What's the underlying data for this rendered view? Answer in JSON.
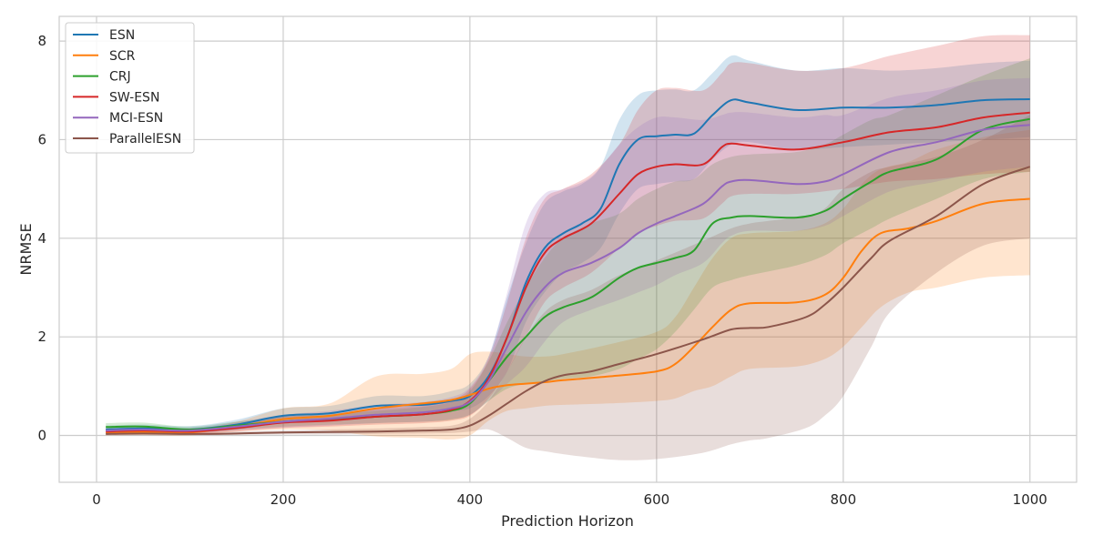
{
  "chart_data": {
    "type": "line",
    "title": "",
    "xlabel": "Prediction Horizon",
    "ylabel": "NRMSE",
    "xlim": [
      -40,
      1050
    ],
    "ylim": [
      -0.95,
      8.5
    ],
    "xticks": [
      0,
      200,
      400,
      600,
      800,
      1000
    ],
    "yticks": [
      0,
      2,
      4,
      6,
      8
    ],
    "xtick_labels": [
      "0",
      "200",
      "400",
      "600",
      "800",
      "1000"
    ],
    "ytick_labels": [
      "0",
      "2",
      "4",
      "6",
      "8"
    ],
    "grid": true,
    "legend_position": "top-left",
    "series": [
      {
        "name": "ESN",
        "color": "#1f77b4",
        "x": [
          10,
          50,
          100,
          150,
          200,
          250,
          300,
          350,
          380,
          400,
          420,
          440,
          460,
          480,
          500,
          520,
          540,
          560,
          580,
          600,
          620,
          640,
          660,
          680,
          700,
          750,
          800,
          850,
          900,
          950,
          1000
        ],
        "mean": [
          0.12,
          0.14,
          0.12,
          0.22,
          0.4,
          0.45,
          0.6,
          0.62,
          0.7,
          0.8,
          1.2,
          2.0,
          3.1,
          3.8,
          4.1,
          4.3,
          4.6,
          5.5,
          6.0,
          6.07,
          6.1,
          6.12,
          6.5,
          6.8,
          6.75,
          6.6,
          6.65,
          6.65,
          6.7,
          6.8,
          6.82
        ],
        "lower": [
          0.05,
          0.06,
          0.05,
          0.12,
          0.25,
          0.3,
          0.4,
          0.45,
          0.5,
          0.55,
          0.8,
          1.3,
          2.3,
          2.9,
          3.3,
          3.5,
          3.8,
          4.5,
          5.0,
          5.1,
          5.15,
          5.2,
          5.6,
          5.9,
          5.95,
          5.8,
          5.85,
          5.9,
          5.95,
          6.0,
          6.05
        ],
        "upper": [
          0.2,
          0.22,
          0.19,
          0.32,
          0.55,
          0.6,
          0.8,
          0.8,
          0.9,
          1.05,
          1.6,
          2.8,
          3.9,
          4.7,
          4.95,
          5.1,
          5.45,
          6.4,
          6.9,
          7.0,
          7.02,
          7.0,
          7.35,
          7.7,
          7.6,
          7.4,
          7.45,
          7.4,
          7.45,
          7.55,
          7.6
        ]
      },
      {
        "name": "SCR",
        "color": "#ff7f0e",
        "x": [
          10,
          50,
          100,
          150,
          200,
          250,
          300,
          350,
          380,
          400,
          420,
          440,
          460,
          480,
          500,
          550,
          600,
          620,
          640,
          660,
          680,
          700,
          750,
          780,
          800,
          820,
          840,
          870,
          900,
          950,
          1000
        ],
        "mean": [
          0.05,
          0.07,
          0.06,
          0.18,
          0.33,
          0.4,
          0.55,
          0.65,
          0.72,
          0.82,
          0.95,
          1.02,
          1.05,
          1.08,
          1.12,
          1.2,
          1.3,
          1.45,
          1.8,
          2.2,
          2.55,
          2.68,
          2.7,
          2.85,
          3.2,
          3.75,
          4.1,
          4.2,
          4.35,
          4.7,
          4.8
        ],
        "lower": [
          0.0,
          0.01,
          0.0,
          0.08,
          0.12,
          0.1,
          -0.02,
          -0.05,
          -0.08,
          0.0,
          0.3,
          0.5,
          0.55,
          0.6,
          0.62,
          0.65,
          0.7,
          0.75,
          0.9,
          1.0,
          1.2,
          1.35,
          1.4,
          1.55,
          1.8,
          2.2,
          2.6,
          2.9,
          3.0,
          3.2,
          3.25
        ],
        "upper": [
          0.12,
          0.14,
          0.12,
          0.28,
          0.55,
          0.65,
          1.2,
          1.25,
          1.35,
          1.65,
          1.7,
          1.65,
          1.6,
          1.6,
          1.65,
          1.85,
          2.1,
          2.4,
          3.0,
          3.6,
          4.0,
          4.1,
          4.15,
          4.3,
          4.6,
          5.1,
          5.4,
          5.55,
          5.8,
          6.05,
          6.2
        ]
      },
      {
        "name": "CRJ",
        "color": "#2ca02c",
        "x": [
          10,
          50,
          100,
          150,
          200,
          250,
          300,
          350,
          380,
          400,
          420,
          440,
          460,
          480,
          500,
          530,
          560,
          580,
          600,
          620,
          640,
          660,
          680,
          700,
          750,
          780,
          800,
          830,
          850,
          900,
          950,
          1000
        ],
        "mean": [
          0.17,
          0.18,
          0.12,
          0.2,
          0.28,
          0.33,
          0.38,
          0.43,
          0.5,
          0.65,
          1.1,
          1.6,
          2.0,
          2.4,
          2.6,
          2.8,
          3.2,
          3.4,
          3.5,
          3.6,
          3.75,
          4.3,
          4.42,
          4.45,
          4.42,
          4.55,
          4.8,
          5.15,
          5.35,
          5.6,
          6.2,
          6.42
        ],
        "lower": [
          0.1,
          0.1,
          0.06,
          0.12,
          0.18,
          0.22,
          0.25,
          0.28,
          0.32,
          0.42,
          0.7,
          0.95,
          1.05,
          1.1,
          1.15,
          1.2,
          1.35,
          1.55,
          1.75,
          2.1,
          2.55,
          3.0,
          3.15,
          3.25,
          3.45,
          3.65,
          3.9,
          4.2,
          4.4,
          4.8,
          5.2,
          5.35
        ],
        "upper": [
          0.25,
          0.26,
          0.18,
          0.28,
          0.38,
          0.44,
          0.5,
          0.58,
          0.68,
          0.9,
          1.5,
          2.3,
          3.0,
          3.6,
          4.0,
          4.3,
          4.5,
          4.8,
          5.0,
          5.15,
          5.2,
          5.5,
          5.65,
          5.7,
          5.75,
          5.9,
          6.1,
          6.4,
          6.5,
          6.9,
          7.3,
          7.65
        ]
      },
      {
        "name": "SW-ESN",
        "color": "#d62728",
        "x": [
          10,
          50,
          100,
          150,
          200,
          250,
          300,
          350,
          380,
          400,
          420,
          440,
          460,
          480,
          500,
          530,
          560,
          580,
          600,
          620,
          650,
          670,
          680,
          700,
          750,
          800,
          850,
          900,
          950,
          1000
        ],
        "mean": [
          0.08,
          0.1,
          0.08,
          0.15,
          0.26,
          0.3,
          0.38,
          0.43,
          0.52,
          0.7,
          1.15,
          2.0,
          3.0,
          3.7,
          4.0,
          4.3,
          4.9,
          5.3,
          5.45,
          5.5,
          5.5,
          5.85,
          5.92,
          5.88,
          5.8,
          5.95,
          6.15,
          6.25,
          6.45,
          6.55
        ],
        "lower": [
          0.03,
          0.04,
          0.03,
          0.08,
          0.15,
          0.18,
          0.22,
          0.25,
          0.3,
          0.4,
          0.75,
          1.3,
          2.0,
          2.7,
          3.0,
          3.3,
          3.8,
          4.1,
          4.25,
          4.35,
          4.4,
          4.7,
          4.85,
          4.9,
          4.9,
          5.0,
          5.15,
          5.2,
          5.3,
          5.35
        ],
        "upper": [
          0.14,
          0.16,
          0.14,
          0.22,
          0.38,
          0.42,
          0.55,
          0.6,
          0.72,
          0.95,
          1.55,
          2.7,
          4.0,
          4.8,
          5.0,
          5.3,
          5.9,
          6.6,
          7.0,
          7.05,
          7.0,
          7.35,
          7.55,
          7.55,
          7.4,
          7.45,
          7.7,
          7.9,
          8.1,
          8.12
        ]
      },
      {
        "name": "MCI-ESN",
        "color": "#9467bd",
        "x": [
          10,
          50,
          100,
          150,
          200,
          250,
          300,
          350,
          380,
          400,
          420,
          440,
          460,
          480,
          500,
          530,
          560,
          580,
          600,
          620,
          650,
          670,
          680,
          700,
          750,
          780,
          800,
          850,
          900,
          950,
          1000
        ],
        "mean": [
          0.1,
          0.12,
          0.1,
          0.18,
          0.28,
          0.34,
          0.42,
          0.47,
          0.55,
          0.68,
          1.1,
          1.8,
          2.5,
          3.0,
          3.3,
          3.5,
          3.8,
          4.1,
          4.3,
          4.45,
          4.7,
          5.05,
          5.15,
          5.18,
          5.1,
          5.15,
          5.3,
          5.75,
          5.95,
          6.2,
          6.3
        ],
        "lower": [
          0.04,
          0.05,
          0.04,
          0.1,
          0.16,
          0.2,
          0.25,
          0.28,
          0.33,
          0.42,
          0.7,
          1.05,
          1.4,
          1.9,
          2.3,
          2.55,
          2.75,
          2.9,
          3.05,
          3.25,
          3.5,
          3.9,
          4.05,
          4.15,
          4.15,
          4.25,
          4.45,
          4.95,
          5.15,
          5.35,
          5.45
        ],
        "upper": [
          0.17,
          0.19,
          0.16,
          0.27,
          0.42,
          0.5,
          0.62,
          0.68,
          0.78,
          0.98,
          1.6,
          2.9,
          4.3,
          4.9,
          5.0,
          5.25,
          5.9,
          6.25,
          6.45,
          6.45,
          6.4,
          6.5,
          6.55,
          6.55,
          6.45,
          6.5,
          6.5,
          6.85,
          7.0,
          7.2,
          7.25
        ]
      },
      {
        "name": "ParallelESN",
        "color": "#8c564b",
        "x": [
          10,
          50,
          100,
          150,
          200,
          250,
          300,
          350,
          380,
          400,
          420,
          440,
          460,
          480,
          500,
          530,
          560,
          600,
          650,
          680,
          700,
          720,
          760,
          780,
          800,
          830,
          850,
          900,
          950,
          1000
        ],
        "mean": [
          0.03,
          0.04,
          0.03,
          0.04,
          0.06,
          0.07,
          0.08,
          0.1,
          0.12,
          0.2,
          0.4,
          0.65,
          0.9,
          1.1,
          1.22,
          1.3,
          1.45,
          1.65,
          1.95,
          2.15,
          2.18,
          2.2,
          2.4,
          2.65,
          3.0,
          3.6,
          3.95,
          4.45,
          5.1,
          5.45
        ],
        "lower": [
          0.0,
          0.0,
          0.0,
          0.01,
          0.02,
          0.02,
          0.03,
          0.04,
          0.05,
          0.08,
          0.12,
          -0.05,
          -0.25,
          -0.32,
          -0.38,
          -0.45,
          -0.5,
          -0.48,
          -0.35,
          -0.18,
          -0.1,
          -0.05,
          0.15,
          0.4,
          0.8,
          1.8,
          2.5,
          3.3,
          3.85,
          4.0
        ],
        "upper": [
          0.06,
          0.08,
          0.06,
          0.08,
          0.1,
          0.12,
          0.14,
          0.17,
          0.2,
          0.34,
          0.7,
          1.3,
          2.0,
          2.5,
          2.75,
          2.95,
          3.25,
          3.55,
          3.95,
          4.2,
          4.3,
          4.35,
          4.45,
          4.6,
          5.0,
          5.35,
          5.45,
          5.65,
          6.0,
          6.5
        ]
      }
    ]
  }
}
